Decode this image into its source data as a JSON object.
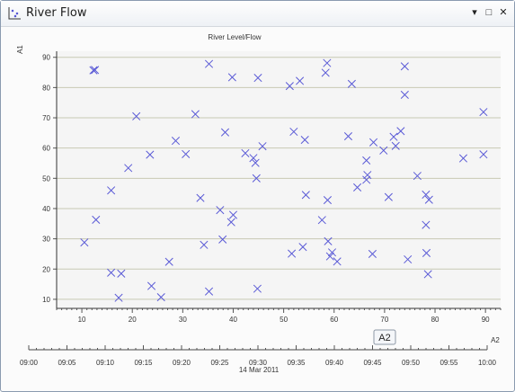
{
  "window": {
    "title": "River Flow",
    "icon": "scatter-chart-icon",
    "controls": {
      "dropdown": "▾",
      "maximize": "□",
      "close": "✕"
    }
  },
  "chart_data": {
    "type": "scatter",
    "title": "River Level/Flow",
    "ylabel": "A1",
    "xlabel": "A2",
    "xlim": [
      5,
      93
    ],
    "ylim": [
      7,
      92
    ],
    "xticks": [
      10,
      20,
      30,
      40,
      50,
      60,
      70,
      80,
      90
    ],
    "yticks": [
      10,
      20,
      30,
      40,
      50,
      60,
      70,
      80,
      90
    ],
    "grid": "horizontal",
    "marker": "x",
    "marker_color": "#5a5ad6",
    "time_axis": {
      "ticks": [
        "09:00",
        "09:05",
        "09:10",
        "09:15",
        "09:20",
        "09:25",
        "09:30",
        "09:35",
        "09:40",
        "09:45",
        "09:50",
        "09:55",
        "10:00"
      ],
      "date_label": "14 Mar 2011"
    },
    "x_axis_badge": "A2",
    "points": [
      [
        10.5,
        28.8
      ],
      [
        12.3,
        85.7
      ],
      [
        12.6,
        85.8
      ],
      [
        12.8,
        36.3
      ],
      [
        15.8,
        46
      ],
      [
        15.8,
        18.8
      ],
      [
        17.3,
        10.5
      ],
      [
        17.8,
        18.5
      ],
      [
        19.2,
        53.4
      ],
      [
        20.8,
        70.5
      ],
      [
        23.5,
        57.8
      ],
      [
        23.8,
        14.4
      ],
      [
        25.7,
        10.7
      ],
      [
        27.3,
        22.4
      ],
      [
        28.6,
        62.4
      ],
      [
        30.6,
        58
      ],
      [
        32.5,
        71.2
      ],
      [
        33.5,
        43.5
      ],
      [
        34.2,
        28
      ],
      [
        35.2,
        87.8
      ],
      [
        35.2,
        12.6
      ],
      [
        37.4,
        39.5
      ],
      [
        37.9,
        29.8
      ],
      [
        38.4,
        65.2
      ],
      [
        39.6,
        35.5
      ],
      [
        39.8,
        83.4
      ],
      [
        40.0,
        37.9
      ],
      [
        42.4,
        58.3
      ],
      [
        44.0,
        56.7
      ],
      [
        44.4,
        55.1
      ],
      [
        44.6,
        50
      ],
      [
        44.8,
        13.5
      ],
      [
        44.9,
        83.2
      ],
      [
        45.8,
        60.6
      ],
      [
        51.2,
        80.5
      ],
      [
        51.6,
        25.1
      ],
      [
        52.0,
        65.4
      ],
      [
        53.2,
        82.2
      ],
      [
        53.8,
        27.3
      ],
      [
        54.2,
        62.7
      ],
      [
        54.4,
        44.5
      ],
      [
        57.6,
        36.2
      ],
      [
        58.3,
        84.9
      ],
      [
        58.7,
        42.8
      ],
      [
        58.6,
        88.1
      ],
      [
        58.8,
        29.2
      ],
      [
        59.2,
        24.2
      ],
      [
        59.6,
        25.5
      ],
      [
        60.6,
        22.5
      ],
      [
        62.8,
        63.9
      ],
      [
        63.5,
        81.2
      ],
      [
        64.6,
        47
      ],
      [
        66.4,
        55.9
      ],
      [
        66.4,
        49.5
      ],
      [
        66.6,
        51.1
      ],
      [
        67.6,
        25
      ],
      [
        67.8,
        61.9
      ],
      [
        69.8,
        59.2
      ],
      [
        71.8,
        63.7
      ],
      [
        72.2,
        60.7
      ],
      [
        73.2,
        65.6
      ],
      [
        70.8,
        43.8
      ],
      [
        74.0,
        87
      ],
      [
        74.0,
        77.6
      ],
      [
        74.6,
        23.2
      ],
      [
        76.5,
        50.8
      ],
      [
        78.2,
        44.6
      ],
      [
        78.2,
        34.6
      ],
      [
        78.3,
        25.3
      ],
      [
        78.6,
        18.3
      ],
      [
        78.8,
        42.9
      ],
      [
        85.6,
        56.6
      ],
      [
        89.6,
        71.9
      ],
      [
        89.6,
        57.9
      ]
    ]
  }
}
